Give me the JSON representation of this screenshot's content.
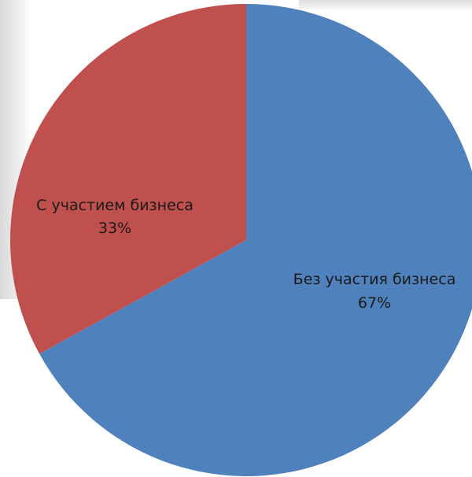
{
  "chart_data": {
    "type": "pie",
    "title": "",
    "slices": [
      {
        "label": "Без участия бизнеса",
        "percent_label": "67%",
        "value": 67,
        "color": "#4f81bd"
      },
      {
        "label": "С участием бизнеса",
        "percent_label": "33%",
        "value": 33,
        "color": "#c0504d"
      }
    ],
    "start_angle": "12 o'clock, clockwise",
    "legend": "none",
    "data_labels": "inside slices"
  }
}
